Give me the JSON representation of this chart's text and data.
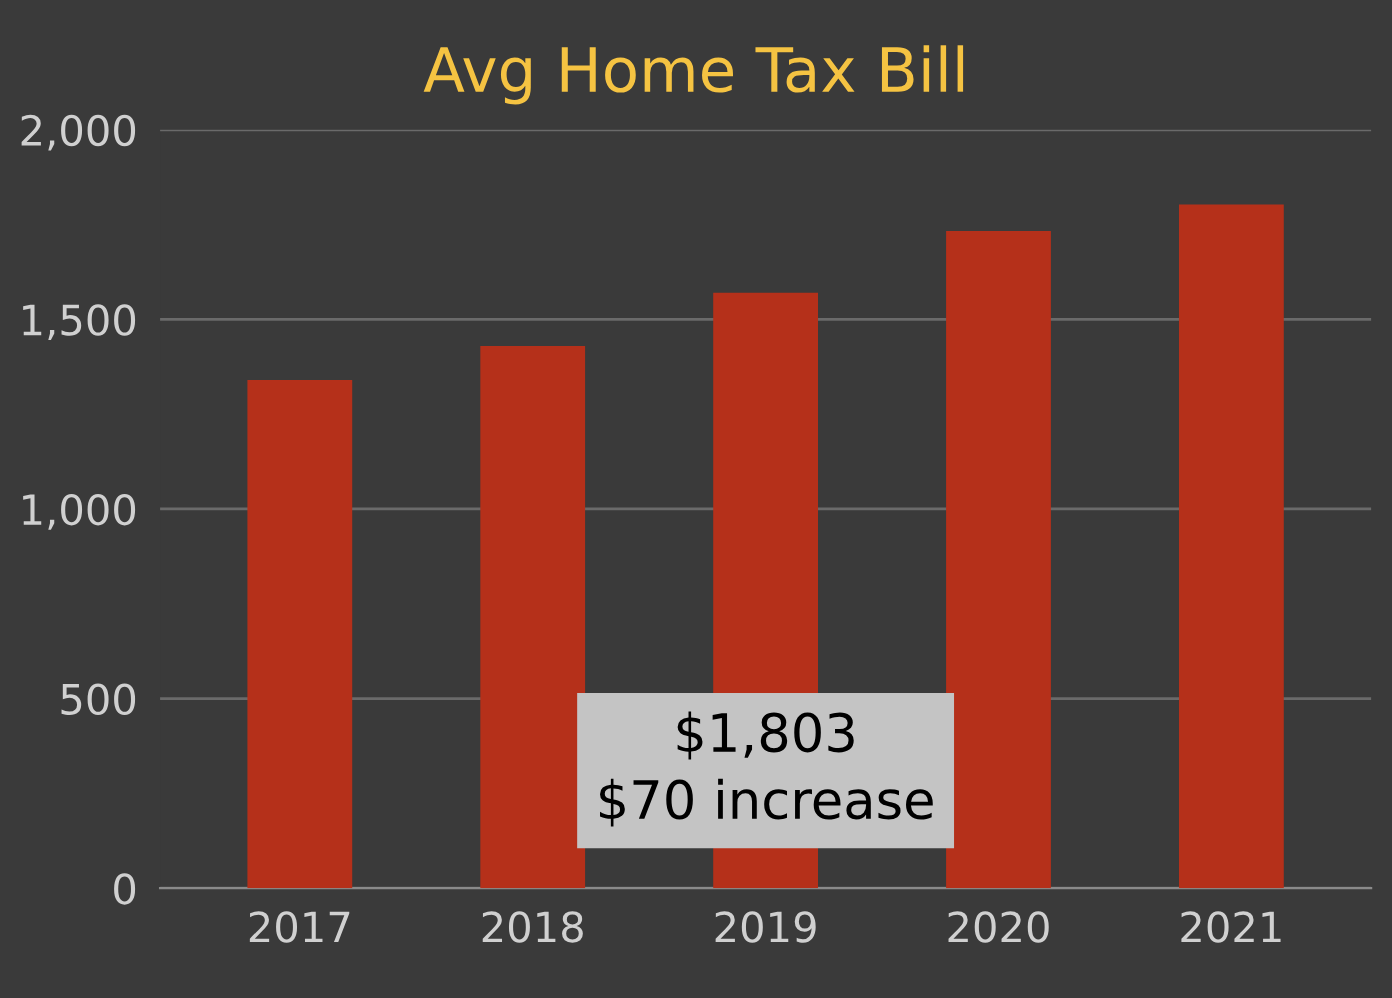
{
  "chart_data": {
    "type": "bar",
    "title": "Avg Home Tax Bill",
    "categories": [
      "2017",
      "2018",
      "2019",
      "2020",
      "2021"
    ],
    "values": [
      1340,
      1430,
      1570,
      1733,
      1803
    ],
    "color": "#b5301a",
    "ylim": [
      0,
      2000
    ],
    "yticks": [
      {
        "value": 0,
        "label": "0"
      },
      {
        "value": 500,
        "label": "500"
      },
      {
        "value": 1000,
        "label": "1,000"
      },
      {
        "value": 1500,
        "label": "1,500"
      },
      {
        "value": 2000,
        "label": "2,000"
      }
    ],
    "grid": "y",
    "annotations": [
      "$1,803\n$70 increase"
    ]
  }
}
